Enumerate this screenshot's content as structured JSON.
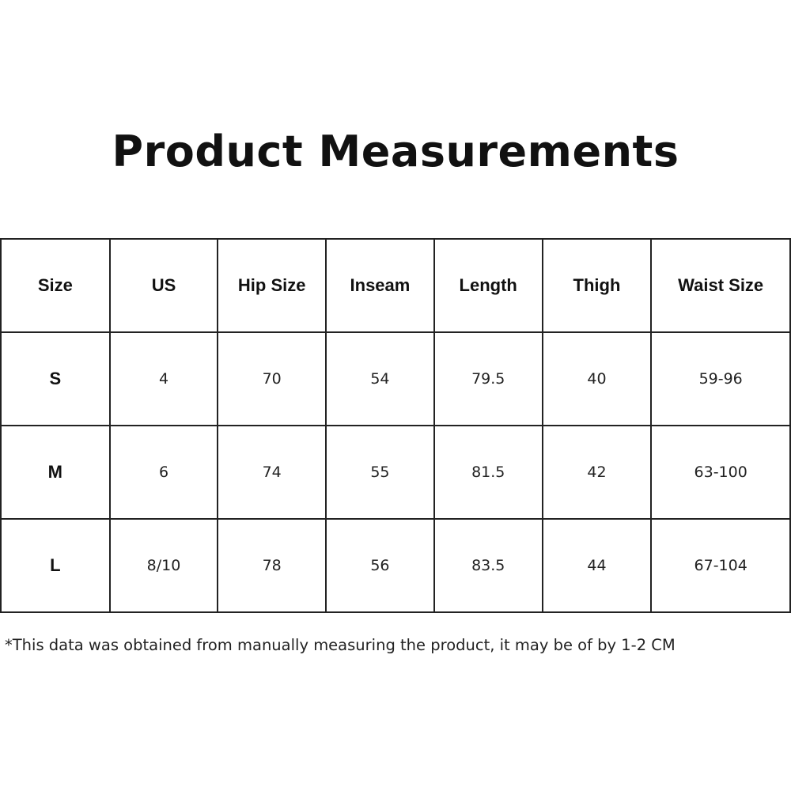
{
  "title": "Product Measurements",
  "table": {
    "headers": [
      "Size",
      "US",
      "Hip Size",
      "Inseam",
      "Length",
      "Thigh",
      "Waist Size"
    ],
    "rows": [
      [
        "S",
        "4",
        "70",
        "54",
        "79.5",
        "40",
        "59-96"
      ],
      [
        "M",
        "6",
        "74",
        "55",
        "81.5",
        "42",
        "63-100"
      ],
      [
        "L",
        "8/10",
        "78",
        "56",
        "83.5",
        "44",
        "67-104"
      ]
    ]
  },
  "footnote": "*This data was obtained from manually measuring the product, it may be of by 1-2 CM"
}
